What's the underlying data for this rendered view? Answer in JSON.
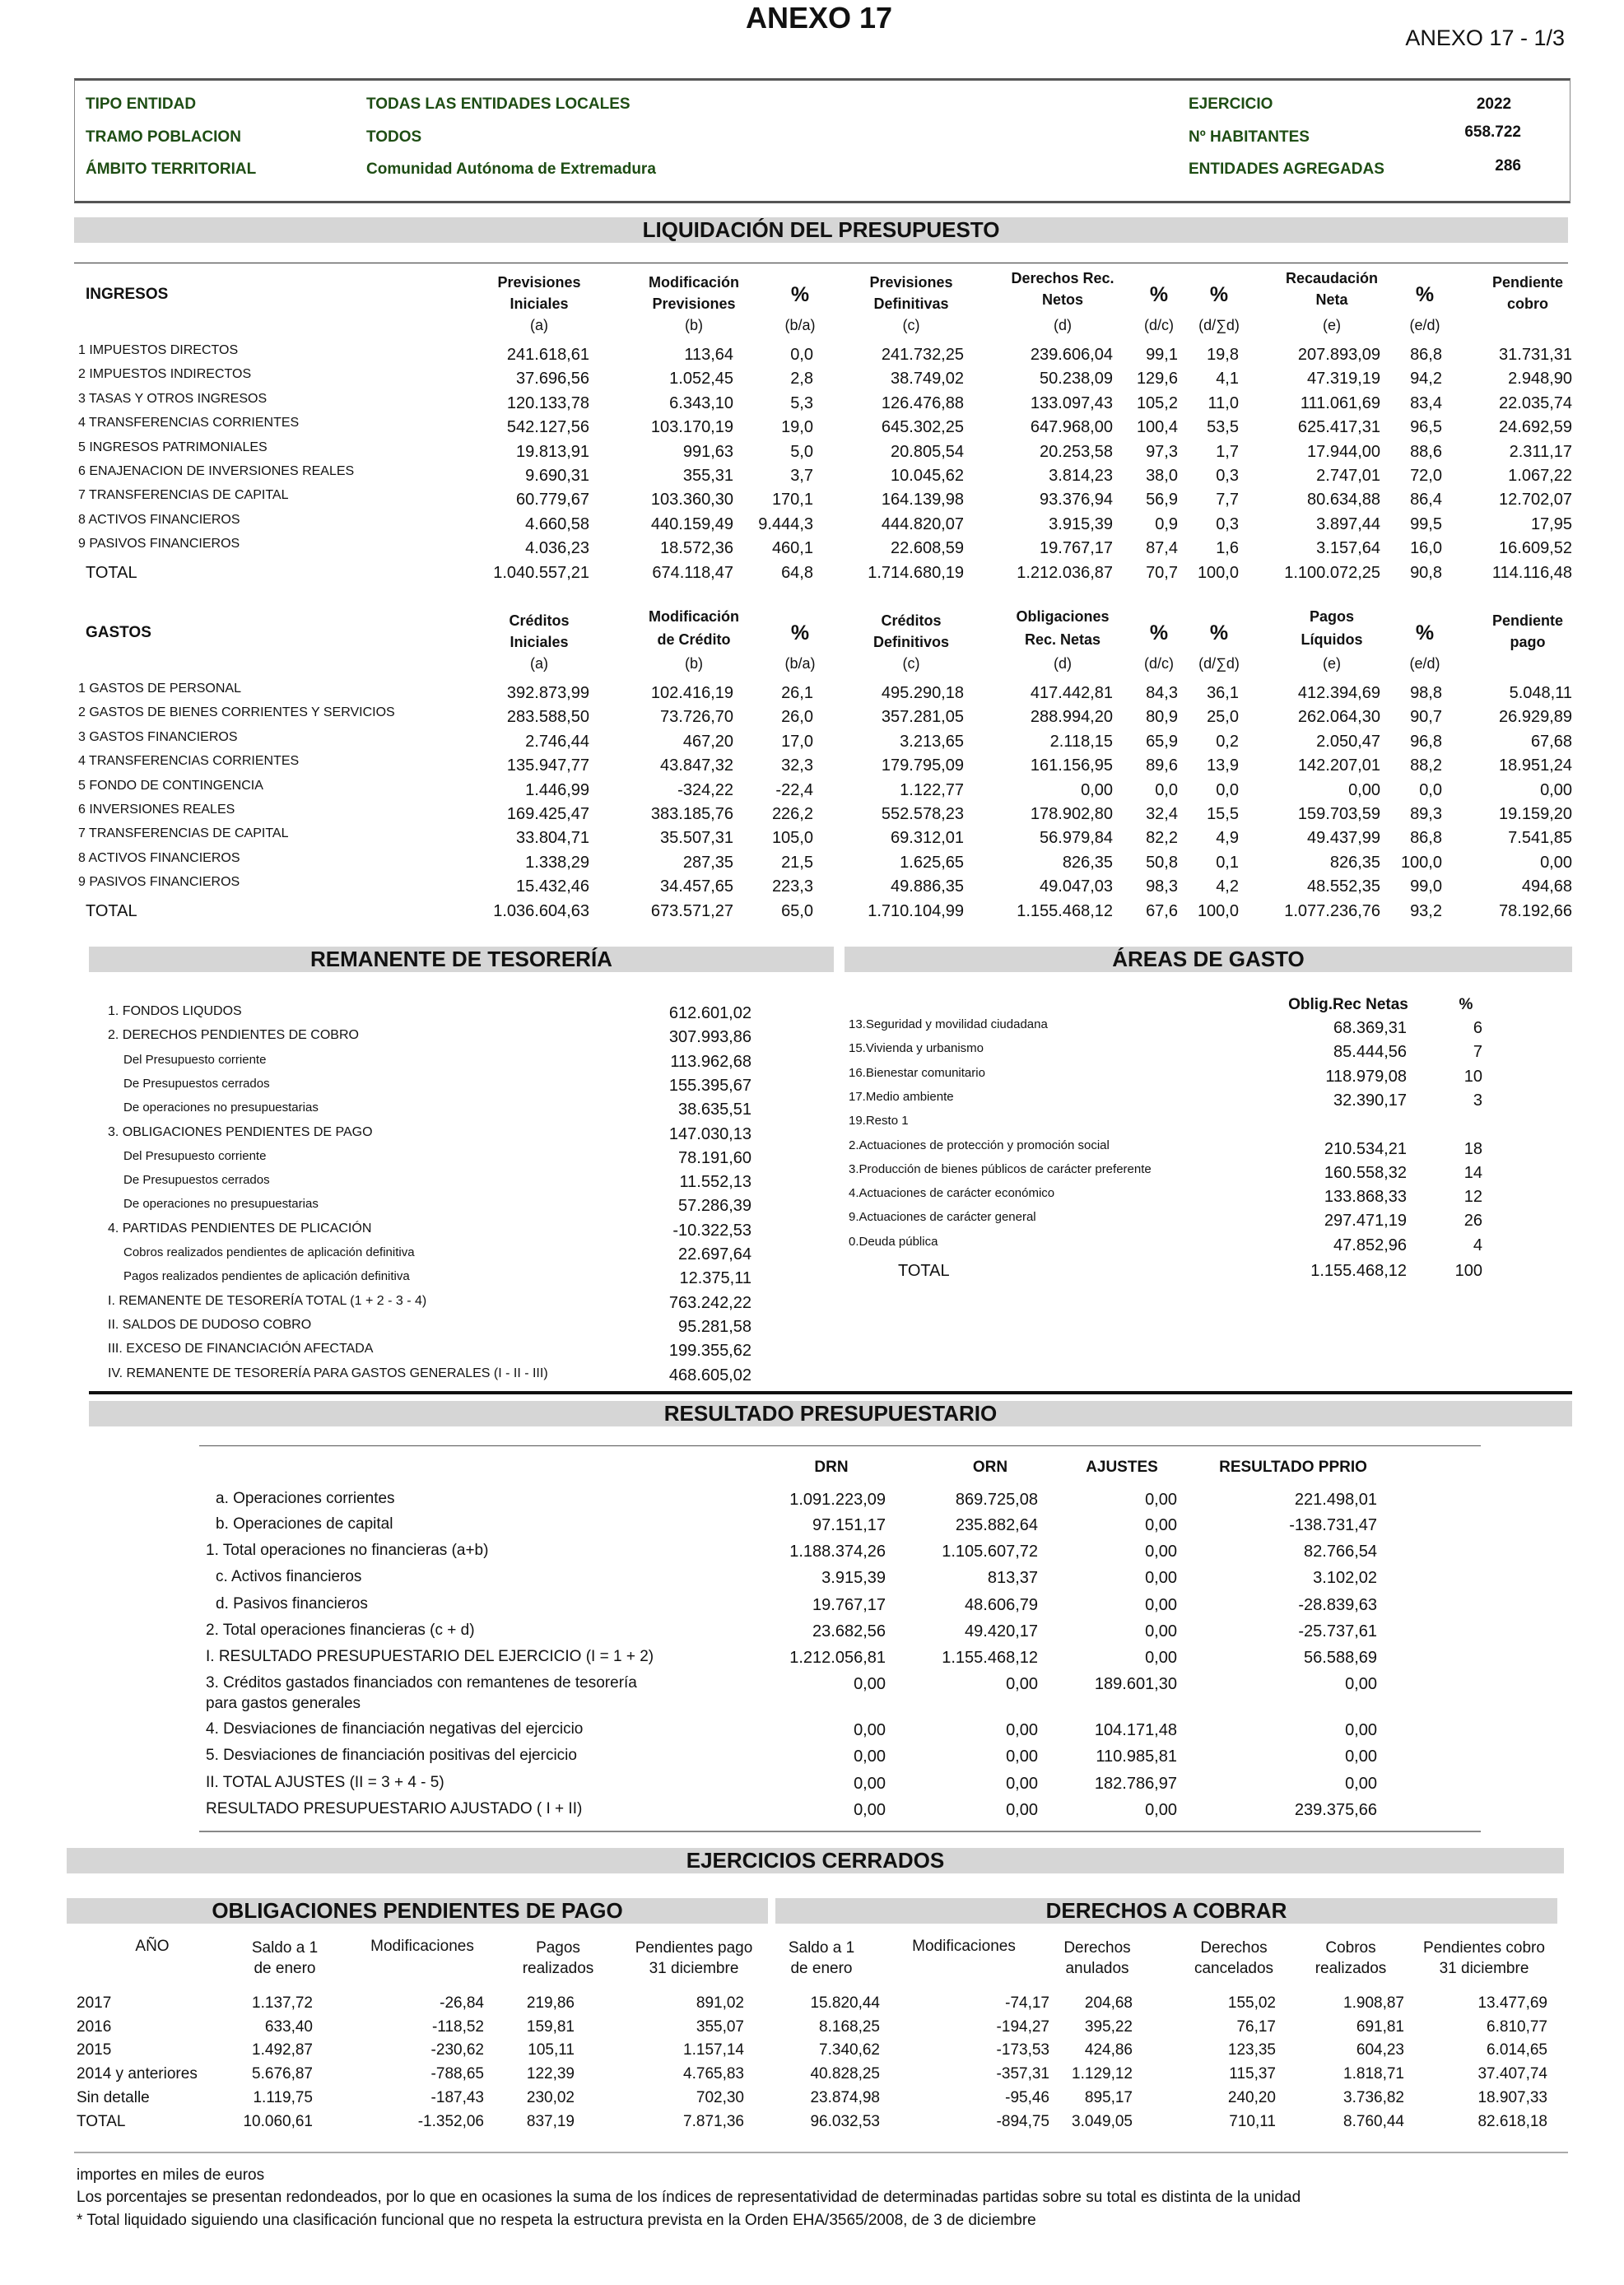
{
  "header": {
    "title": "ANEXO 17",
    "page": "ANEXO 17 - 1/3"
  },
  "info": {
    "tipo_label": "TIPO ENTIDAD",
    "tipo_value": "TODAS LAS ENTIDADES LOCALES",
    "tramo_label": "TRAMO POBLACION",
    "tramo_value": "TODOS",
    "ambito_label": "ÁMBITO TERRITORIAL",
    "ambito_value": "Comunidad Autónoma de Extremadura",
    "ejercicio_label": "EJERCICIO",
    "ejercicio_value": "2022",
    "habitantes_label": "Nº HABITANTES",
    "habitantes_value": "658.722",
    "entidades_label": "ENTIDADES AGREGADAS",
    "entidades_value": "286",
    "text_color": "#1e4d14"
  },
  "liquidacion": {
    "title": "LIQUIDACIÓN DEL PRESUPUESTO",
    "ingresos": {
      "title": "INGRESOS",
      "columns": [
        [
          "Previsiones",
          "Iniciales",
          "(a)"
        ],
        [
          "Modificación",
          "Previsiones",
          "(b)"
        ],
        [
          "%",
          "(b/a)"
        ],
        [
          "Previsiones",
          "Definitivas",
          "(c)"
        ],
        [
          "Derechos  Rec.",
          "Netos",
          "(d)"
        ],
        [
          "%",
          "(d/c)"
        ],
        [
          "%",
          "(d/∑d)"
        ],
        [
          "Recaudación",
          "Neta",
          "(e)"
        ],
        [
          "%",
          "(e/d)"
        ],
        [
          "Pendiente",
          "cobro"
        ]
      ],
      "rows": [
        {
          "label": "1 IMPUESTOS DIRECTOS",
          "values": [
            "241.618,61",
            "113,64",
            "0,0",
            "241.732,25",
            "239.606,04",
            "99,1",
            "19,8",
            "207.893,09",
            "86,8",
            "31.731,31"
          ]
        },
        {
          "label": "2 IMPUESTOS INDIRECTOS",
          "values": [
            "37.696,56",
            "1.052,45",
            "2,8",
            "38.749,02",
            "50.238,09",
            "129,6",
            "4,1",
            "47.319,19",
            "94,2",
            "2.948,90"
          ]
        },
        {
          "label": "3 TASAS Y OTROS INGRESOS",
          "values": [
            "120.133,78",
            "6.343,10",
            "5,3",
            "126.476,88",
            "133.097,43",
            "105,2",
            "11,0",
            "111.061,69",
            "83,4",
            "22.035,74"
          ]
        },
        {
          "label": "4 TRANSFERENCIAS CORRIENTES",
          "values": [
            "542.127,56",
            "103.170,19",
            "19,0",
            "645.302,25",
            "647.968,00",
            "100,4",
            "53,5",
            "625.417,31",
            "96,5",
            "24.692,59"
          ]
        },
        {
          "label": "5 INGRESOS PATRIMONIALES",
          "values": [
            "19.813,91",
            "991,63",
            "5,0",
            "20.805,54",
            "20.253,58",
            "97,3",
            "1,7",
            "17.944,00",
            "88,6",
            "2.311,17"
          ]
        },
        {
          "label": "6 ENAJENACION DE INVERSIONES REALES",
          "values": [
            "9.690,31",
            "355,31",
            "3,7",
            "10.045,62",
            "3.814,23",
            "38,0",
            "0,3",
            "2.747,01",
            "72,0",
            "1.067,22"
          ]
        },
        {
          "label": "7 TRANSFERENCIAS DE CAPITAL",
          "values": [
            "60.779,67",
            "103.360,30",
            "170,1",
            "164.139,98",
            "93.376,94",
            "56,9",
            "7,7",
            "80.634,88",
            "86,4",
            "12.702,07"
          ]
        },
        {
          "label": "8 ACTIVOS FINANCIEROS",
          "values": [
            "4.660,58",
            "440.159,49",
            "9.444,3",
            "444.820,07",
            "3.915,39",
            "0,9",
            "0,3",
            "3.897,44",
            "99,5",
            "17,95"
          ]
        },
        {
          "label": "9 PASIVOS FINANCIEROS",
          "values": [
            "4.036,23",
            "18.572,36",
            "460,1",
            "22.608,59",
            "19.767,17",
            "87,4",
            "1,6",
            "3.157,64",
            "16,0",
            "16.609,52"
          ]
        }
      ],
      "total": {
        "label": "TOTAL",
        "values": [
          "1.040.557,21",
          "674.118,47",
          "64,8",
          "1.714.680,19",
          "1.212.036,87",
          "70,7",
          "100,0",
          "1.100.072,25",
          "90,8",
          "114.116,48"
        ]
      }
    },
    "gastos": {
      "title": "GASTOS",
      "columns": [
        [
          "Créditos",
          "Iniciales",
          "(a)"
        ],
        [
          "Modificación",
          "de Crédito",
          "(b)"
        ],
        [
          "%",
          "(b/a)"
        ],
        [
          "Créditos",
          "Definitivos",
          "(c)"
        ],
        [
          "Obligaciones",
          "Rec. Netas",
          "(d)"
        ],
        [
          "%",
          "(d/c)"
        ],
        [
          "%",
          "(d/∑d)"
        ],
        [
          "Pagos",
          "Líquidos",
          "(e)"
        ],
        [
          "%",
          "(e/d)"
        ],
        [
          "Pendiente",
          "pago"
        ]
      ],
      "rows": [
        {
          "label": "1 GASTOS DE PERSONAL",
          "values": [
            "392.873,99",
            "102.416,19",
            "26,1",
            "495.290,18",
            "417.442,81",
            "84,3",
            "36,1",
            "412.394,69",
            "98,8",
            "5.048,11"
          ]
        },
        {
          "label": "2 GASTOS DE BIENES CORRIENTES Y SERVICIOS",
          "values": [
            "283.588,50",
            "73.726,70",
            "26,0",
            "357.281,05",
            "288.994,20",
            "80,9",
            "25,0",
            "262.064,30",
            "90,7",
            "26.929,89"
          ]
        },
        {
          "label": "3 GASTOS FINANCIEROS",
          "values": [
            "2.746,44",
            "467,20",
            "17,0",
            "3.213,65",
            "2.118,15",
            "65,9",
            "0,2",
            "2.050,47",
            "96,8",
            "67,68"
          ]
        },
        {
          "label": "4 TRANSFERENCIAS CORRIENTES",
          "values": [
            "135.947,77",
            "43.847,32",
            "32,3",
            "179.795,09",
            "161.156,95",
            "89,6",
            "13,9",
            "142.207,01",
            "88,2",
            "18.951,24"
          ]
        },
        {
          "label": "5 FONDO DE CONTINGENCIA",
          "values": [
            "1.446,99",
            "-324,22",
            "-22,4",
            "1.122,77",
            "0,00",
            "0,0",
            "0,0",
            "0,00",
            "0,0",
            "0,00"
          ]
        },
        {
          "label": "6 INVERSIONES REALES",
          "values": [
            "169.425,47",
            "383.185,76",
            "226,2",
            "552.578,23",
            "178.902,80",
            "32,4",
            "15,5",
            "159.703,59",
            "89,3",
            "19.159,20"
          ]
        },
        {
          "label": "7 TRANSFERENCIAS DE CAPITAL",
          "values": [
            "33.804,71",
            "35.507,31",
            "105,0",
            "69.312,01",
            "56.979,84",
            "82,2",
            "4,9",
            "49.437,99",
            "86,8",
            "7.541,85"
          ]
        },
        {
          "label": "8 ACTIVOS FINANCIEROS",
          "values": [
            "1.338,29",
            "287,35",
            "21,5",
            "1.625,65",
            "826,35",
            "50,8",
            "0,1",
            "826,35",
            "100,0",
            "0,00"
          ]
        },
        {
          "label": "9 PASIVOS FINANCIEROS",
          "values": [
            "15.432,46",
            "34.457,65",
            "223,3",
            "49.886,35",
            "49.047,03",
            "98,3",
            "4,2",
            "48.552,35",
            "99,0",
            "494,68"
          ]
        }
      ],
      "total": {
        "label": "TOTAL",
        "values": [
          "1.036.604,63",
          "673.571,27",
          "65,0",
          "1.710.104,99",
          "1.155.468,12",
          "67,6",
          "100,0",
          "1.077.236,76",
          "93,2",
          "78.192,66"
        ]
      }
    }
  },
  "remanente": {
    "title": "REMANENTE DE TESORERÍA",
    "rows": [
      {
        "label": "1. FONDOS LIQUDOS",
        "value": "612.601,02",
        "sub": false
      },
      {
        "label": "2. DERECHOS PENDIENTES DE COBRO",
        "value": "307.993,86",
        "sub": false
      },
      {
        "label": "Del Presupuesto corriente",
        "value": "113.962,68",
        "sub": true
      },
      {
        "label": "De Presupuestos cerrados",
        "value": "155.395,67",
        "sub": true
      },
      {
        "label": "De operaciones no presupuestarias",
        "value": "38.635,51",
        "sub": true
      },
      {
        "label": "3. OBLIGACIONES PENDIENTES DE PAGO",
        "value": "147.030,13",
        "sub": false
      },
      {
        "label": "Del Presupuesto corriente",
        "value": "78.191,60",
        "sub": true
      },
      {
        "label": "De Presupuestos cerrados",
        "value": "11.552,13",
        "sub": true
      },
      {
        "label": "De operaciones no presupuestarias",
        "value": "57.286,39",
        "sub": true
      },
      {
        "label": "4. PARTIDAS PENDIENTES DE PLICACIÓN",
        "value": "-10.322,53",
        "sub": false
      },
      {
        "label": "Cobros realizados pendientes de aplicación definitiva",
        "value": "22.697,64",
        "sub": true
      },
      {
        "label": "Pagos realizados pendientes de aplicación definitiva",
        "value": "12.375,11",
        "sub": true
      },
      {
        "label": "I.   REMANENTE DE TESORERÍA TOTAL (1 + 2 - 3 - 4)",
        "value": "763.242,22",
        "sub": false
      },
      {
        "label": "II.   SALDOS DE DUDOSO COBRO",
        "value": "95.281,58",
        "sub": false
      },
      {
        "label": "III.  EXCESO DE FINANCIACIÓN AFECTADA",
        "value": "199.355,62",
        "sub": false
      },
      {
        "label": "IV. REMANENTE DE TESORERÍA PARA GASTOS GENERALES (I - II - III)",
        "value": "468.605,02",
        "sub": false
      }
    ]
  },
  "areas": {
    "title": "ÁREAS DE GASTO",
    "col_value": "Oblig.Rec Netas",
    "col_pct": "%",
    "rows": [
      {
        "label": "13.Seguridad y movilidad ciudadana",
        "value": "68.369,31",
        "pct": "6"
      },
      {
        "label": "15.Vivienda y urbanismo",
        "value": "85.444,56",
        "pct": "7"
      },
      {
        "label": "16.Bienestar  comunitario",
        "value": "118.979,08",
        "pct": "10"
      },
      {
        "label": "17.Medio ambiente",
        "value": "32.390,17",
        "pct": "3"
      },
      {
        "label": "19.Resto 1",
        "value": "",
        "pct": ""
      },
      {
        "label": "2.Actuaciones de protección y promoción social",
        "value": "210.534,21",
        "pct": "18"
      },
      {
        "label": "3.Producción de bienes públicos de carácter preferente",
        "value": "160.558,32",
        "pct": "14"
      },
      {
        "label": "4.Actuaciones de carácter económico",
        "value": "133.868,33",
        "pct": "12"
      },
      {
        "label": "9.Actuaciones de carácter general",
        "value": "297.471,19",
        "pct": "26"
      },
      {
        "label": "0.Deuda pública",
        "value": "47.852,96",
        "pct": "4"
      }
    ],
    "total": {
      "label": "TOTAL",
      "value": "1.155.468,12",
      "pct": "100"
    }
  },
  "resultado": {
    "title": "RESULTADO PRESUPUESTARIO",
    "columns": [
      "DRN",
      "ORN",
      "AJUSTES",
      "RESULTADO PPRIO"
    ],
    "rows": [
      {
        "label": "a. Operaciones corrientes",
        "values": [
          "1.091.223,09",
          "869.725,08",
          "0,00",
          "221.498,01"
        ],
        "sub": true
      },
      {
        "label": "b. Operaciones de capital",
        "values": [
          "97.151,17",
          "235.882,64",
          "0,00",
          "-138.731,47"
        ],
        "sub": true
      },
      {
        "label": "1. Total operaciones no financieras (a+b)",
        "values": [
          "1.188.374,26",
          "1.105.607,72",
          "0,00",
          "82.766,54"
        ],
        "sub": false
      },
      {
        "label": "c.  Activos financieros",
        "values": [
          "3.915,39",
          "813,37",
          "0,00",
          "3.102,02"
        ],
        "sub": true
      },
      {
        "label": "d.  Pasivos financieros",
        "values": [
          "19.767,17",
          "48.606,79",
          "0,00",
          "-28.839,63"
        ],
        "sub": true
      },
      {
        "label": "2. Total operaciones financieras (c + d)",
        "values": [
          "23.682,56",
          "49.420,17",
          "0,00",
          "-25.737,61"
        ],
        "sub": false
      },
      {
        "label": "I. RESULTADO PRESUPUESTARIO DEL EJERCICIO (I = 1 + 2)",
        "values": [
          "1.212.056,81",
          "1.155.468,12",
          "0,00",
          "56.588,69"
        ],
        "sub": false
      },
      {
        "label": "3. Créditos gastados financiados con remantenes de tesorería\npara gastos generales",
        "values": [
          "0,00",
          "0,00",
          "189.601,30",
          "0,00"
        ],
        "sub": false
      },
      {
        "label": "4. Desviaciones de financiación negativas del ejercicio",
        "values": [
          "0,00",
          "0,00",
          "104.171,48",
          "0,00"
        ],
        "sub": false
      },
      {
        "label": "5. Desviaciones de financiación positivas del ejercicio",
        "values": [
          "0,00",
          "0,00",
          "110.985,81",
          "0,00"
        ],
        "sub": false
      },
      {
        "label": "II. TOTAL AJUSTES (II = 3 + 4 - 5)",
        "values": [
          "0,00",
          "0,00",
          "182.786,97",
          "0,00"
        ],
        "sub": false
      },
      {
        "label": "RESULTADO PRESUPUESTARIO AJUSTADO ( I + II)",
        "values": [
          "0,00",
          "0,00",
          "0,00",
          "239.375,66"
        ],
        "sub": false
      }
    ]
  },
  "ejercicios": {
    "title": "EJERCICIOS CERRADOS",
    "obligaciones_title": "OBLIGACIONES PENDIENTES DE PAGO",
    "derechos_title": "DERECHOS A COBRAR",
    "year_header": "AÑO",
    "columns": [
      [
        "Saldo a 1",
        "de enero"
      ],
      [
        "Modificaciones"
      ],
      [
        "Pagos",
        "realizados"
      ],
      [
        "Pendientes pago",
        "31 diciembre"
      ],
      [
        "Saldo a 1",
        "de enero"
      ],
      [
        "Modificaciones"
      ],
      [
        "Derechos",
        "anulados"
      ],
      [
        "Derechos",
        "cancelados"
      ],
      [
        "Cobros",
        "realizados"
      ],
      [
        "Pendientes cobro",
        "31 diciembre"
      ]
    ],
    "rows": [
      {
        "year": "2017",
        "values": [
          "1.137,72",
          "-26,84",
          "219,86",
          "891,02",
          "15.820,44",
          "-74,17",
          "204,68",
          "155,02",
          "1.908,87",
          "13.477,69"
        ]
      },
      {
        "year": "2016",
        "values": [
          "633,40",
          "-118,52",
          "159,81",
          "355,07",
          "8.168,25",
          "-194,27",
          "395,22",
          "76,17",
          "691,81",
          "6.810,77"
        ]
      },
      {
        "year": "2015",
        "values": [
          "1.492,87",
          "-230,62",
          "105,11",
          "1.157,14",
          "7.340,62",
          "-173,53",
          "424,86",
          "123,35",
          "604,23",
          "6.014,65"
        ]
      },
      {
        "year": "2014 y anteriores",
        "values": [
          "5.676,87",
          "-788,65",
          "122,39",
          "4.765,83",
          "40.828,25",
          "-357,31",
          "1.129,12",
          "115,37",
          "1.818,71",
          "37.407,74"
        ]
      },
      {
        "year": " Sin detalle",
        "values": [
          "1.119,75",
          "-187,43",
          "230,02",
          "702,30",
          "23.874,98",
          "-95,46",
          "895,17",
          "240,20",
          "3.736,82",
          "18.907,33"
        ]
      },
      {
        "year": "TOTAL",
        "values": [
          "10.060,61",
          "-1.352,06",
          "837,19",
          "7.871,36",
          "96.032,53",
          "-894,75",
          "3.049,05",
          "710,11",
          "8.760,44",
          "82.618,18"
        ]
      }
    ]
  },
  "footnotes": [
    "importes en miles de euros",
    "Los porcentajes se presentan redondeados, por lo que en ocasiones la suma de los índices de representatividad de determinadas partidas sobre su total es distinta de la unidad",
    "* Total liquidado siguiendo una clasificación funcional que no respeta la estructura prevista en la Orden EHA/3565/2008, de 3 de diciembre"
  ]
}
